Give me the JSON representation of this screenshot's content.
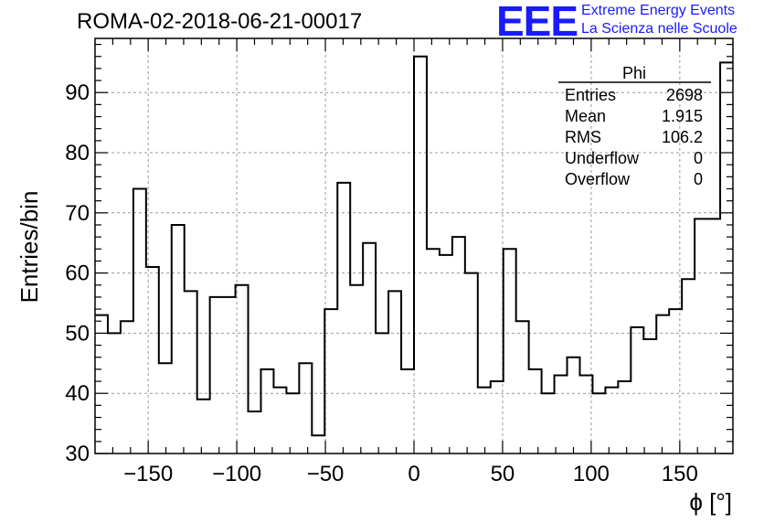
{
  "header": {
    "title": "ROMA-02-2018-06-21-00017",
    "logo": "EEE",
    "logo_line1": "Extreme Energy Events",
    "logo_line2": "La Scienza nelle Scuole"
  },
  "stats": {
    "name": "Phi",
    "rows": [
      {
        "label": "Entries",
        "value": "2698"
      },
      {
        "label": "Mean",
        "value": "1.915"
      },
      {
        "label": "RMS",
        "value": "106.2"
      },
      {
        "label": "Underflow",
        "value": "0"
      },
      {
        "label": "Overflow",
        "value": "0"
      }
    ]
  },
  "chart_data": {
    "type": "histogram",
    "title": "ROMA-02-2018-06-21-00017",
    "xlabel": "ϕ [°]",
    "ylabel": "Entries/bin",
    "xlim": [
      -180,
      180
    ],
    "ylim": [
      30,
      99
    ],
    "bin_width": 7.2,
    "grid": true,
    "xticks": [
      -150,
      -100,
      -50,
      0,
      50,
      100,
      150
    ],
    "xtick_labels": [
      "−150",
      "−100",
      "−50",
      "0",
      "50",
      "100",
      "150"
    ],
    "yticks": [
      30,
      40,
      50,
      60,
      70,
      80,
      90
    ],
    "bin_edges_start": -180,
    "values": [
      53,
      50,
      52,
      74,
      61,
      45,
      68,
      57,
      39,
      56,
      56,
      58,
      37,
      44,
      41,
      40,
      45,
      33,
      54,
      75,
      58,
      65,
      50,
      57,
      44,
      96,
      64,
      63,
      66,
      60,
      41,
      42,
      64,
      52,
      44,
      40,
      43,
      46,
      43,
      40,
      41,
      42,
      51,
      49,
      53,
      54,
      59,
      69,
      69,
      95
    ],
    "color": "#000000"
  }
}
